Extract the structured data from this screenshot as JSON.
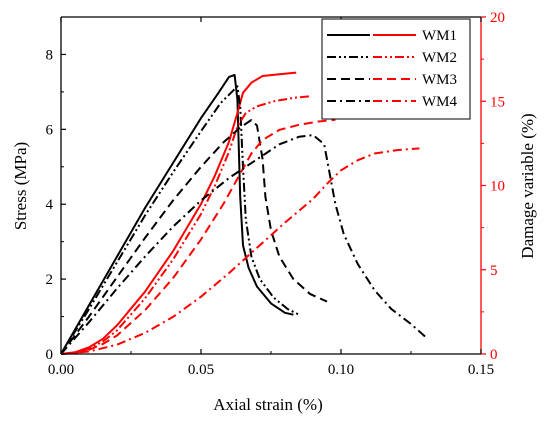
{
  "chart_data": {
    "type": "line",
    "xlabel": "Axial strain (%)",
    "ylabel": "Stress (MPa)",
    "y2label": "Damage variable (%)",
    "xlim": [
      0.0,
      0.15
    ],
    "ylim": [
      0,
      9
    ],
    "y2lim": [
      0,
      20
    ],
    "xticks": [
      "0.00",
      "0.05",
      "0.10",
      "0.15"
    ],
    "yticks": [
      "0",
      "2",
      "4",
      "6",
      "8"
    ],
    "y2ticks": [
      "0",
      "5",
      "10",
      "15",
      "20"
    ],
    "colors": {
      "stress": "#000000",
      "damage": "#ff0000"
    },
    "legend_position": "top-right",
    "legend": [
      "WM1",
      "WM2",
      "WM3",
      "WM4"
    ],
    "series": [
      {
        "name": "WM1",
        "dash": "solid",
        "stress": [
          [
            0,
            0
          ],
          [
            0.01,
            1.3
          ],
          [
            0.02,
            2.6
          ],
          [
            0.03,
            3.9
          ],
          [
            0.04,
            5.1
          ],
          [
            0.05,
            6.3
          ],
          [
            0.056,
            6.95
          ],
          [
            0.06,
            7.4
          ],
          [
            0.062,
            7.45
          ],
          [
            0.063,
            6.8
          ],
          [
            0.0635,
            5.5
          ],
          [
            0.064,
            4.2
          ],
          [
            0.065,
            2.9
          ],
          [
            0.067,
            2.3
          ],
          [
            0.07,
            1.8
          ],
          [
            0.075,
            1.35
          ],
          [
            0.08,
            1.1
          ],
          [
            0.083,
            1.05
          ]
        ],
        "damage": [
          [
            0,
            0
          ],
          [
            0.005,
            0.1
          ],
          [
            0.01,
            0.4
          ],
          [
            0.015,
            0.9
          ],
          [
            0.02,
            1.7
          ],
          [
            0.03,
            3.7
          ],
          [
            0.04,
            6.1
          ],
          [
            0.05,
            8.9
          ],
          [
            0.055,
            10.6
          ],
          [
            0.06,
            12.6
          ],
          [
            0.063,
            14.3
          ],
          [
            0.065,
            15.5
          ],
          [
            0.068,
            16.1
          ],
          [
            0.072,
            16.5
          ],
          [
            0.078,
            16.6
          ],
          [
            0.084,
            16.7
          ]
        ]
      },
      {
        "name": "WM2",
        "dash": "dash-dot-dot",
        "stress": [
          [
            0,
            0
          ],
          [
            0.01,
            1.2
          ],
          [
            0.02,
            2.45
          ],
          [
            0.03,
            3.7
          ],
          [
            0.04,
            4.85
          ],
          [
            0.05,
            5.95
          ],
          [
            0.057,
            6.7
          ],
          [
            0.061,
            7.0
          ],
          [
            0.063,
            7.15
          ],
          [
            0.064,
            6.6
          ],
          [
            0.065,
            5.0
          ],
          [
            0.066,
            3.6
          ],
          [
            0.068,
            2.6
          ],
          [
            0.071,
            2.0
          ],
          [
            0.076,
            1.5
          ],
          [
            0.081,
            1.2
          ],
          [
            0.085,
            1.05
          ]
        ],
        "damage": [
          [
            0,
            0
          ],
          [
            0.005,
            0.08
          ],
          [
            0.01,
            0.3
          ],
          [
            0.015,
            0.75
          ],
          [
            0.02,
            1.4
          ],
          [
            0.03,
            3.3
          ],
          [
            0.04,
            5.6
          ],
          [
            0.05,
            8.3
          ],
          [
            0.055,
            10.0
          ],
          [
            0.06,
            12.0
          ],
          [
            0.063,
            13.5
          ],
          [
            0.066,
            14.3
          ],
          [
            0.07,
            14.7
          ],
          [
            0.076,
            15.0
          ],
          [
            0.083,
            15.2
          ],
          [
            0.089,
            15.3
          ]
        ]
      },
      {
        "name": "WM3",
        "dash": "dash",
        "stress": [
          [
            0,
            0
          ],
          [
            0.01,
            1.0
          ],
          [
            0.02,
            2.05
          ],
          [
            0.03,
            3.1
          ],
          [
            0.04,
            4.1
          ],
          [
            0.05,
            5.0
          ],
          [
            0.058,
            5.65
          ],
          [
            0.064,
            6.05
          ],
          [
            0.068,
            6.25
          ],
          [
            0.07,
            6.1
          ],
          [
            0.072,
            5.2
          ],
          [
            0.073,
            4.2
          ],
          [
            0.075,
            3.3
          ],
          [
            0.078,
            2.6
          ],
          [
            0.083,
            2.0
          ],
          [
            0.089,
            1.6
          ],
          [
            0.095,
            1.4
          ]
        ],
        "damage": [
          [
            0,
            0
          ],
          [
            0.005,
            0.06
          ],
          [
            0.01,
            0.25
          ],
          [
            0.015,
            0.6
          ],
          [
            0.02,
            1.1
          ],
          [
            0.03,
            2.6
          ],
          [
            0.04,
            4.5
          ],
          [
            0.05,
            6.8
          ],
          [
            0.058,
            8.9
          ],
          [
            0.064,
            10.7
          ],
          [
            0.068,
            11.9
          ],
          [
            0.072,
            12.7
          ],
          [
            0.078,
            13.3
          ],
          [
            0.085,
            13.6
          ],
          [
            0.092,
            13.8
          ],
          [
            0.098,
            13.9
          ]
        ]
      },
      {
        "name": "WM4",
        "dash": "dash-dot",
        "stress": [
          [
            0,
            0
          ],
          [
            0.01,
            0.85
          ],
          [
            0.02,
            1.75
          ],
          [
            0.03,
            2.6
          ],
          [
            0.04,
            3.4
          ],
          [
            0.05,
            4.1
          ],
          [
            0.06,
            4.7
          ],
          [
            0.07,
            5.2
          ],
          [
            0.078,
            5.6
          ],
          [
            0.085,
            5.8
          ],
          [
            0.09,
            5.85
          ],
          [
            0.094,
            5.6
          ],
          [
            0.096,
            4.8
          ],
          [
            0.098,
            4.0
          ],
          [
            0.101,
            3.2
          ],
          [
            0.106,
            2.4
          ],
          [
            0.112,
            1.7
          ],
          [
            0.118,
            1.2
          ],
          [
            0.125,
            0.8
          ],
          [
            0.131,
            0.4
          ]
        ],
        "damage": [
          [
            0,
            0
          ],
          [
            0.01,
            0.15
          ],
          [
            0.02,
            0.55
          ],
          [
            0.03,
            1.25
          ],
          [
            0.04,
            2.2
          ],
          [
            0.05,
            3.4
          ],
          [
            0.06,
            4.8
          ],
          [
            0.07,
            6.3
          ],
          [
            0.08,
            7.8
          ],
          [
            0.09,
            9.2
          ],
          [
            0.095,
            10.1
          ],
          [
            0.1,
            10.9
          ],
          [
            0.106,
            11.5
          ],
          [
            0.112,
            11.9
          ],
          [
            0.12,
            12.1
          ],
          [
            0.128,
            12.2
          ]
        ]
      }
    ]
  }
}
